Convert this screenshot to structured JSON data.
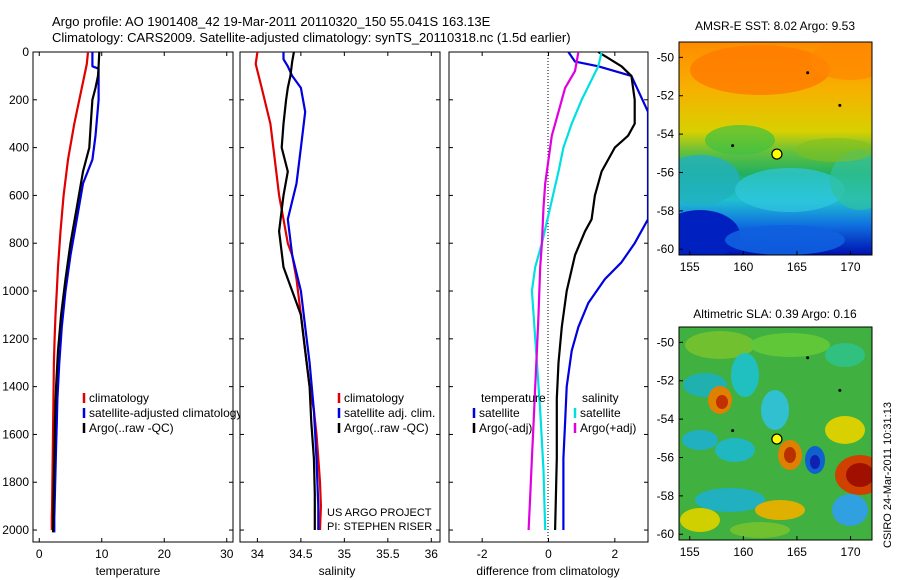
{
  "header": {
    "line1": "Argo profile: AO 1901408_42 19-Mar-2011 20110320_150 55.041S 163.13E",
    "line2": "Climatology: CARS2009. Satellite-adjusted climatology: synTS_20110318.nc (1.5d earlier)"
  },
  "credit": {
    "project": "US ARGO PROJECT",
    "pi": "PI: STEPHEN RISER",
    "stamp": "CSIRO 24-Mar-2011 10:31:13"
  },
  "chart_data": [
    {
      "type": "line",
      "xlabel": "temperature",
      "xlim": [
        -1,
        31
      ],
      "ylim": [
        0,
        2050
      ],
      "y_reversed": true,
      "xticks": [
        "0",
        "10",
        "20",
        "30"
      ],
      "yticks": [
        "0",
        "200",
        "400",
        "600",
        "800",
        "1000",
        "1200",
        "1400",
        "1600",
        "1800",
        "2000"
      ],
      "legend": [
        "climatology",
        "satellite-adjusted climatology",
        "Argo(..raw -QC)"
      ],
      "series": [
        {
          "name": "climatology",
          "color": "#e00000",
          "x": [
            7.8,
            7.6,
            6.8,
            5.6,
            4.6,
            3.9,
            3.4,
            3.0,
            2.8,
            2.6,
            2.45,
            2.35,
            2.3,
            2.25,
            2.2,
            2.15,
            2.1,
            2.05,
            2.0,
            2.0
          ],
          "y": [
            0,
            50,
            150,
            300,
            450,
            600,
            750,
            900,
            1000,
            1100,
            1200,
            1300,
            1400,
            1500,
            1600,
            1700,
            1800,
            1900,
            1950,
            2000
          ]
        },
        {
          "name": "satellite-adjusted climatology",
          "color": "#0000e0",
          "x": [
            8.5,
            8.5,
            9.5,
            9.5,
            9.0,
            8.5,
            7.0,
            6.0,
            5.0,
            4.2,
            3.6,
            3.2,
            2.9,
            2.8,
            2.7,
            2.6,
            2.5,
            2.45,
            2.4,
            2.4,
            2.4
          ],
          "y": [
            0,
            60,
            70,
            200,
            350,
            450,
            550,
            700,
            850,
            1000,
            1150,
            1300,
            1450,
            1550,
            1650,
            1750,
            1850,
            1900,
            1950,
            2000,
            2010
          ]
        },
        {
          "name": "Argo(..raw -QC)",
          "color": "#000000",
          "x": [
            9.6,
            9.5,
            9.4,
            9.0,
            8.5,
            8.3,
            8.0,
            7.0,
            6.0,
            5.0,
            4.2,
            3.5,
            3.0,
            2.7,
            2.5,
            2.4,
            2.3,
            2.25,
            2.2
          ],
          "y": [
            0,
            60,
            100,
            150,
            200,
            280,
            400,
            500,
            650,
            800,
            950,
            1100,
            1250,
            1400,
            1550,
            1700,
            1850,
            1950,
            2010
          ]
        }
      ]
    },
    {
      "type": "line",
      "xlabel": "salinity",
      "xlim": [
        33.8,
        36.1
      ],
      "ylim": [
        0,
        2050
      ],
      "y_reversed": true,
      "xticks": [
        "34",
        "34.5",
        "35",
        "35.5",
        "36"
      ],
      "legend": [
        "climatology",
        "satellite adj. clim.",
        "Argo(..raw -QC)"
      ],
      "series": [
        {
          "name": "climatology",
          "color": "#e00000",
          "x": [
            34.0,
            33.98,
            34.05,
            34.15,
            34.2,
            34.25,
            34.3,
            34.35,
            34.4,
            34.45,
            34.5,
            34.55,
            34.6,
            34.65,
            34.68,
            34.7,
            34.72,
            34.73,
            34.72
          ],
          "y": [
            0,
            50,
            150,
            300,
            450,
            600,
            700,
            800,
            850,
            950,
            1100,
            1250,
            1400,
            1500,
            1600,
            1700,
            1800,
            1900,
            2000
          ]
        },
        {
          "name": "satellite adj. clim.",
          "color": "#0000e0",
          "x": [
            34.3,
            34.3,
            34.35,
            34.4,
            34.5,
            34.55,
            34.5,
            34.45,
            34.35,
            34.4,
            34.5,
            34.55,
            34.6,
            34.65,
            34.68,
            34.7,
            34.7
          ],
          "y": [
            0,
            30,
            60,
            100,
            150,
            250,
            400,
            550,
            700,
            850,
            1000,
            1150,
            1300,
            1500,
            1700,
            1900,
            2000
          ]
        },
        {
          "name": "Argo(..raw -QC)",
          "color": "#000000",
          "x": [
            34.42,
            34.4,
            34.38,
            34.35,
            34.33,
            34.3,
            34.28,
            34.35,
            34.3,
            34.25,
            34.3,
            34.4,
            34.5,
            34.55,
            34.6,
            34.62,
            34.65,
            34.66,
            34.66
          ],
          "y": [
            0,
            40,
            100,
            150,
            200,
            300,
            400,
            500,
            600,
            750,
            900,
            1000,
            1100,
            1250,
            1400,
            1550,
            1700,
            1850,
            2000
          ]
        }
      ]
    },
    {
      "type": "line",
      "xlabel": "difference from climatology",
      "xlim": [
        -3,
        3
      ],
      "ylim": [
        0,
        2050
      ],
      "y_reversed": true,
      "xticks": [
        "-2",
        "0",
        "2"
      ],
      "legend_left_title": "temperature",
      "legend_right_title": "salinity",
      "legend": [
        "satellite",
        "Argo(-adj)",
        "satellite",
        "Argo(+adj)"
      ],
      "series": [
        {
          "name": "satellite",
          "quantity": "temperature",
          "color": "#0000e0",
          "x": [
            0.6,
            0.8,
            1.5,
            2.5,
            3.0,
            3.0,
            2.6,
            2.2,
            1.7,
            1.2,
            0.9,
            0.7,
            0.55,
            0.5,
            0.45,
            0.45,
            0.45
          ],
          "y": [
            0,
            40,
            60,
            100,
            250,
            700,
            800,
            880,
            950,
            1050,
            1150,
            1250,
            1400,
            1550,
            1700,
            1850,
            2000
          ]
        },
        {
          "name": "Argo(-adj)",
          "quantity": "temperature",
          "color": "#000000",
          "x": [
            1.5,
            2.2,
            2.5,
            2.6,
            2.6,
            2.4,
            2.0,
            1.6,
            1.4,
            1.3,
            1.1,
            0.8,
            0.55,
            0.4,
            0.3,
            0.25,
            0.25,
            0.2
          ],
          "y": [
            0,
            60,
            100,
            200,
            300,
            350,
            400,
            500,
            600,
            700,
            750,
            850,
            1000,
            1150,
            1300,
            1450,
            1700,
            2000
          ]
        },
        {
          "name": "satellite",
          "quantity": "salinity",
          "color": "#00e0e0",
          "x": [
            1.6,
            1.5,
            1.0,
            0.7,
            0.45,
            0.3,
            0.05,
            -0.2,
            -0.4,
            -0.5,
            -0.45,
            -0.35,
            -0.25,
            -0.15,
            -0.1
          ],
          "y": [
            0,
            60,
            200,
            300,
            400,
            500,
            650,
            800,
            900,
            1000,
            1100,
            1300,
            1500,
            1750,
            2000
          ]
        },
        {
          "name": "Argo(+adj)",
          "quantity": "salinity",
          "color": "#e000e0",
          "x": [
            0.9,
            0.8,
            0.5,
            0.3,
            0.1,
            0.0,
            -0.1,
            -0.15,
            -0.2,
            -0.25,
            -0.3,
            -0.35,
            -0.4,
            -0.45,
            -0.5,
            -0.55,
            -0.6
          ],
          "y": [
            0,
            80,
            150,
            250,
            350,
            450,
            550,
            650,
            800,
            900,
            1100,
            1250,
            1400,
            1550,
            1700,
            1850,
            2000
          ]
        }
      ]
    },
    {
      "type": "heatmap",
      "title": "AMSR-E SST: 8.02 Argo: 9.53",
      "xlim": [
        154,
        172
      ],
      "ylim": [
        -60.3,
        -49.2
      ],
      "xticks": [
        "155",
        "160",
        "165",
        "170"
      ],
      "yticks": [
        "-50",
        "-52",
        "-54",
        "-56",
        "-58",
        "-60"
      ],
      "argo_position": [
        163.13,
        -55.04
      ]
    },
    {
      "type": "heatmap",
      "title": "Altimetric SLA: 0.39 Argo: 0.16",
      "xlim": [
        154,
        172
      ],
      "ylim": [
        -60.3,
        -49.2
      ],
      "xticks": [
        "155",
        "160",
        "165",
        "170"
      ],
      "yticks": [
        "-50",
        "-52",
        "-54",
        "-56",
        "-58",
        "-60"
      ],
      "argo_position": [
        163.13,
        -55.04
      ]
    }
  ]
}
